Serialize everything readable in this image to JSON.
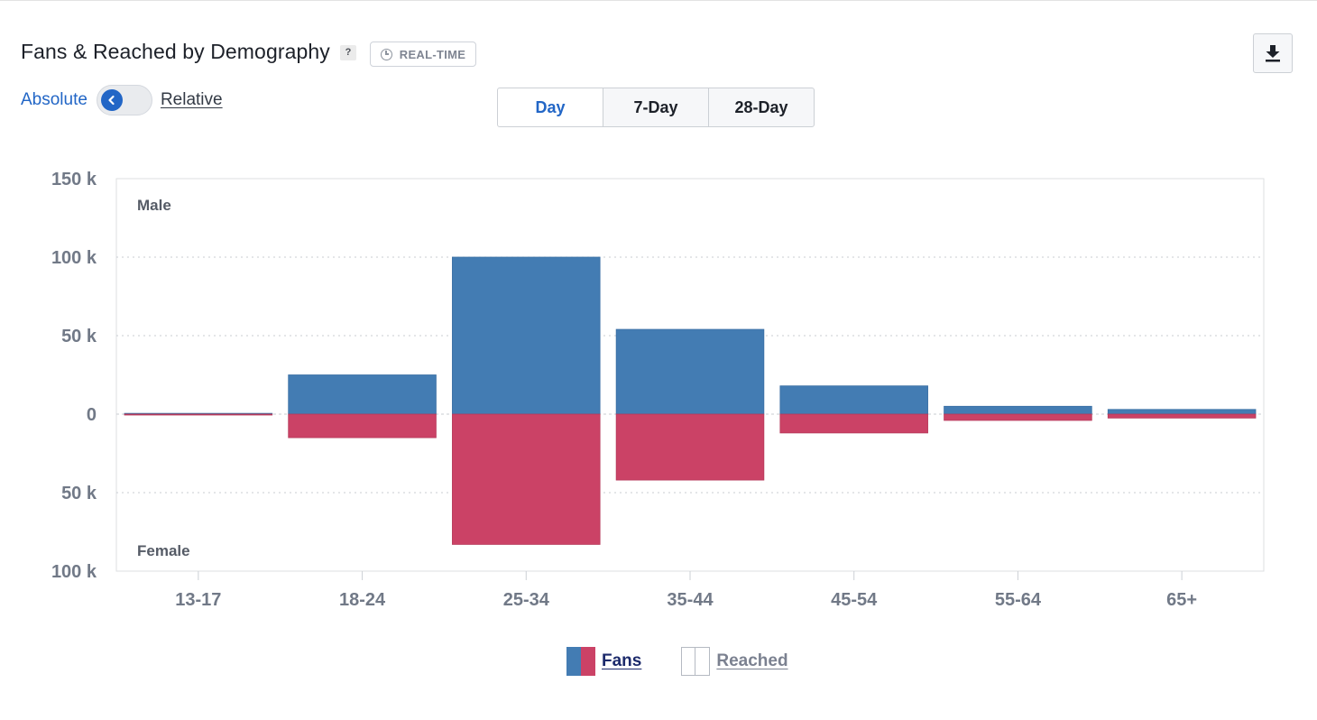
{
  "header": {
    "title": "Fans & Reached by Demography",
    "help_label": "?",
    "realtime_label": "REAL-TIME",
    "icons": {
      "help": "help-icon",
      "realtime": "clock-icon",
      "download": "download-icon"
    }
  },
  "toggle": {
    "absolute_label": "Absolute",
    "relative_label": "Relative",
    "selected": "Absolute"
  },
  "periods": {
    "options": [
      "Day",
      "7-Day",
      "28-Day"
    ],
    "selected": "Day"
  },
  "colors": {
    "accent": "#2266c6",
    "male_fans": "#437cb3",
    "female_fans": "#cb4266"
  },
  "chart_data": {
    "type": "bar",
    "categories": [
      "13-17",
      "18-24",
      "25-34",
      "35-44",
      "45-54",
      "55-64",
      "65+"
    ],
    "series": [
      {
        "name": "Male",
        "group": "Fans",
        "values": [
          0.5,
          25,
          100,
          54,
          18,
          5,
          3
        ]
      },
      {
        "name": "Female",
        "group": "Fans",
        "values": [
          0.5,
          15,
          83,
          42,
          12,
          4,
          2.5
        ]
      }
    ],
    "ylim": [
      -100,
      150
    ],
    "yticks": [
      150,
      100,
      50,
      0,
      -50,
      -100
    ],
    "ytick_labels": [
      "150 k",
      "100 k",
      "50 k",
      "0",
      "50 k",
      "100 k"
    ],
    "unit": "k",
    "region_labels": {
      "upper": "Male",
      "lower": "Female"
    },
    "legend": [
      {
        "label": "Fans",
        "active": true
      },
      {
        "label": "Reached",
        "active": false
      }
    ],
    "grid": true,
    "legend_position": "bottom"
  }
}
